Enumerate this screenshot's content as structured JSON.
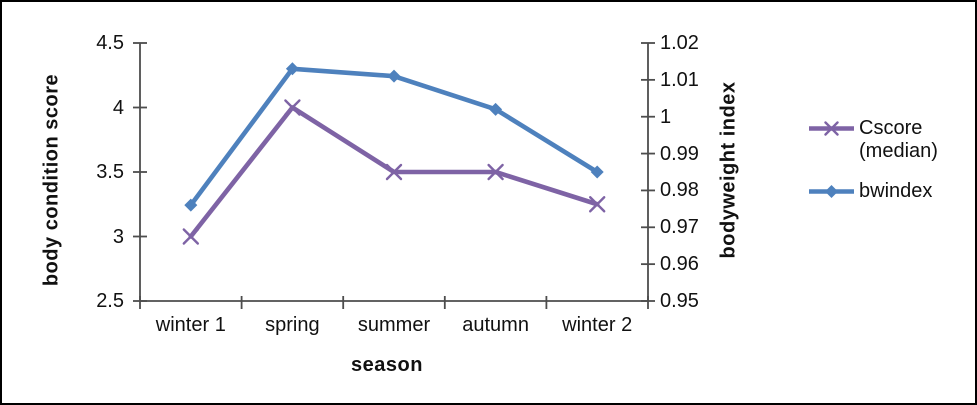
{
  "chart_data": {
    "type": "line",
    "categories": [
      "winter 1",
      "spring",
      "summer",
      "autumn",
      "winter 2"
    ],
    "series": [
      {
        "name": "Cscore (median)",
        "axis": "left",
        "marker": "x",
        "color": "#7E63A5",
        "values": [
          3.0,
          4.0,
          3.5,
          3.5,
          3.25
        ]
      },
      {
        "name": "bwindex",
        "axis": "right",
        "marker": "diamond",
        "color": "#4E81BD",
        "values": [
          0.976,
          1.013,
          1.011,
          1.002,
          0.985
        ]
      }
    ],
    "xlabel": "season",
    "ylabel_left": "body condition score",
    "ylabel_right": "bodyweight index",
    "left_axis": {
      "min": 2.5,
      "max": 4.5,
      "ticks": [
        "2.5",
        "3",
        "3.5",
        "4",
        "4.5"
      ]
    },
    "right_axis": {
      "min": 0.95,
      "max": 1.02,
      "ticks": [
        "0.95",
        "0.96",
        "0.97",
        "0.98",
        "0.99",
        "1",
        "1.01",
        "1.02"
      ]
    },
    "grid": false,
    "legend_position": "right",
    "axis_color": "#4d4d4d",
    "text_color": "#111111",
    "background_color": "#ffffff"
  }
}
